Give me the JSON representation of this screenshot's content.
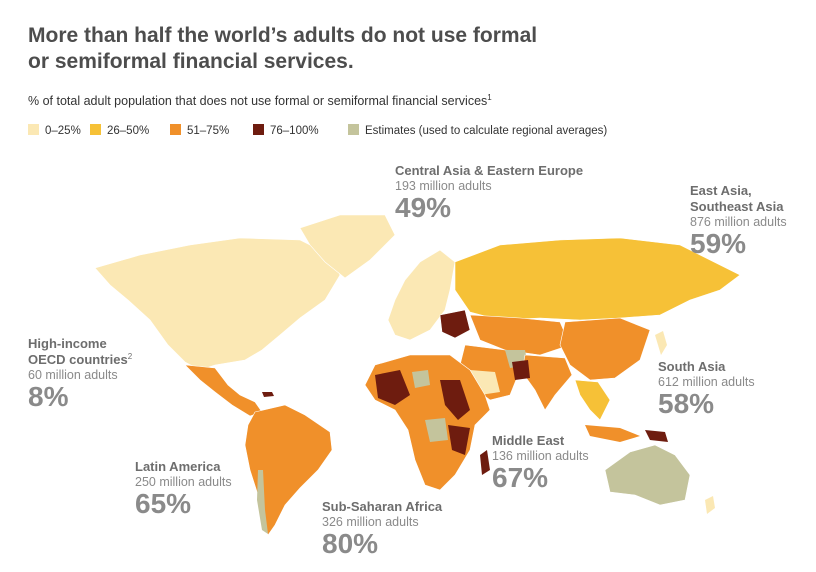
{
  "title_lines": [
    "More than half the world’s adults do not use formal",
    "or semiformal financial services."
  ],
  "subtitle": "% of total adult population that does not use formal or semiformal financial services",
  "subtitle_note": "1",
  "legend": [
    {
      "label": "0–25%",
      "color": "#fbe8b4"
    },
    {
      "label": "26–50%",
      "color": "#f6c137"
    },
    {
      "label": "51–75%",
      "color": "#f0902a"
    },
    {
      "label": "76–100%",
      "color": "#6e1c0f"
    },
    {
      "label": "Estimates (used to calculate regional averages)",
      "color": "#c4c49c"
    }
  ],
  "regions": [
    {
      "name_lines": [
        "Central Asia & Eastern Europe"
      ],
      "adults": "193 million adults",
      "share": "49%"
    },
    {
      "name_lines": [
        "East Asia,",
        "Southeast Asia"
      ],
      "adults": "876 million adults",
      "share": "59%"
    },
    {
      "name_lines": [
        "High-income",
        "OECD countries"
      ],
      "note": "2",
      "adults": "60 million adults",
      "share": "8%"
    },
    {
      "name_lines": [
        "South Asia"
      ],
      "adults": "612 million adults",
      "share": "58%"
    },
    {
      "name_lines": [
        "Middle East"
      ],
      "adults": "136 million adults",
      "share": "67%"
    },
    {
      "name_lines": [
        "Latin America"
      ],
      "adults": "250 million adults",
      "share": "65%"
    },
    {
      "name_lines": [
        "Sub-Saharan Africa"
      ],
      "adults": "326 million adults",
      "share": "80%"
    }
  ]
}
